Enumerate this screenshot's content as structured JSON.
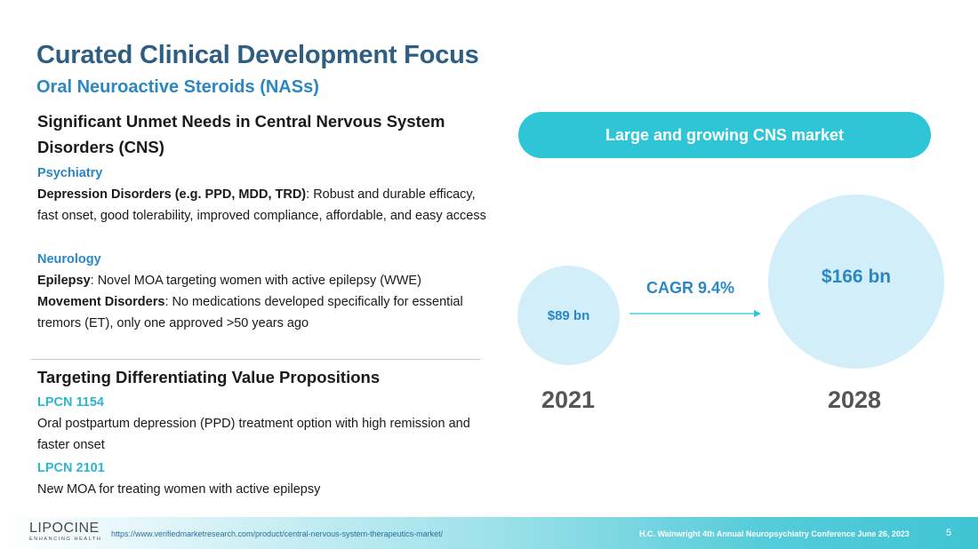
{
  "header": {
    "title": "Curated Clinical Development Focus",
    "subtitle": "Oral Neuroactive Steroids (NASs)"
  },
  "unmet_needs": {
    "heading": "Significant Unmet Needs in Central Nervous System Disorders (CNS)",
    "psychiatry": {
      "label": "Psychiatry",
      "depression_term": "Depression Disorders (e.g. PPD, MDD, TRD)",
      "depression_desc": ": Robust and durable efficacy, fast onset, good tolerability, improved compliance, affordable, and easy access"
    },
    "neurology": {
      "label": "Neurology",
      "epilepsy_term": "Epilepsy",
      "epilepsy_desc": ": Novel MOA targeting women with active epilepsy (WWE)",
      "movement_term": "Movement Disorders",
      "movement_desc": ": No medications developed specifically for essential tremors (ET), only one approved >50 years ago"
    }
  },
  "value_props": {
    "heading": "Targeting Differentiating Value Propositions",
    "products": [
      {
        "name": "LPCN 1154",
        "desc": "Oral postpartum depression (PPD) treatment option with high remission and faster onset"
      },
      {
        "name": "LPCN 2101",
        "desc": "New MOA for treating women with active epilepsy"
      }
    ]
  },
  "market": {
    "banner": "Large and growing CNS market",
    "value_2021": "$89 bn",
    "value_2028": "$166 bn",
    "cagr": "CAGR 9.4%",
    "year_start": "2021",
    "year_end": "2028"
  },
  "footer": {
    "logo_main": "LIPOCINE",
    "logo_sub": "ENHANCING HEALTH",
    "source_url": "https://www.verifiedmarketresearch.com/product/central-nervous-system-therapeutics-market/",
    "conference": "H.C. Wainwright 4th Annual Neuropsychiatry Conference June 26, 2023",
    "page_number": "5"
  },
  "colors": {
    "title": "#2e5f82",
    "accent_blue": "#2b87c3",
    "teal": "#2ec6d6",
    "circle_fill": "#d2eef9"
  }
}
